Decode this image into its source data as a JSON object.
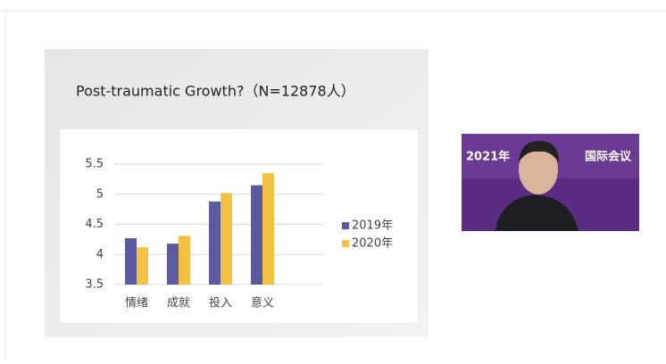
{
  "chart_data": {
    "type": "bar",
    "title": "Post-traumatic Growth?（N=12878人）",
    "categories": [
      "情绪",
      "成就",
      "投入",
      "意义"
    ],
    "series": [
      {
        "name": "2019年",
        "color": "#5a5aa0",
        "values": [
          4.27,
          4.18,
          4.88,
          5.15
        ]
      },
      {
        "name": "2020年",
        "color": "#f4c242",
        "values": [
          4.12,
          4.31,
          5.02,
          5.35
        ]
      }
    ],
    "ylim": [
      3.5,
      5.5
    ],
    "yticks": [
      3.5,
      4,
      4.5,
      5,
      5.5
    ],
    "grid": true,
    "legend": "right"
  },
  "video": {
    "banner_left": "2021年",
    "banner_right": "国际会议"
  }
}
